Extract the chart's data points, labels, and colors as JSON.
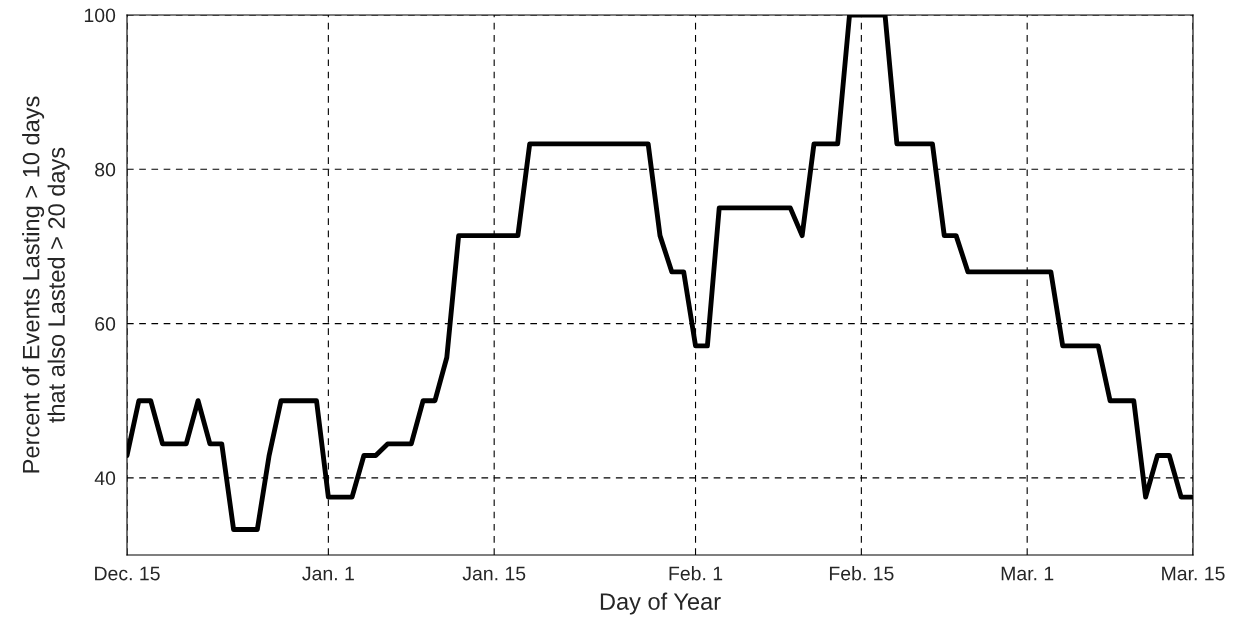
{
  "chart_data": {
    "type": "line",
    "xlabel": "Day of Year",
    "ylabel": "Percent of Events Lasting > 10 days\nthat also Lasted > 20 days",
    "categories": [
      "Dec. 15",
      null,
      null,
      null,
      null,
      null,
      null,
      null,
      null,
      null,
      null,
      null,
      null,
      null,
      null,
      null,
      null,
      "Jan. 1",
      null,
      null,
      null,
      null,
      null,
      null,
      null,
      null,
      null,
      null,
      null,
      null,
      null,
      "Jan. 15",
      null,
      null,
      null,
      null,
      null,
      null,
      null,
      null,
      null,
      null,
      null,
      null,
      null,
      null,
      null,
      null,
      "Feb. 1",
      null,
      null,
      null,
      null,
      null,
      null,
      null,
      null,
      null,
      null,
      null,
      null,
      null,
      "Feb. 15",
      null,
      null,
      null,
      null,
      null,
      null,
      null,
      null,
      null,
      null,
      null,
      null,
      null,
      "Mar. 1",
      null,
      null,
      null,
      null,
      null,
      null,
      null,
      null,
      null,
      null,
      null,
      null,
      null,
      "Mar. 15"
    ],
    "series": [
      {
        "color": "#000000",
        "values": [
          42.9,
          50,
          50,
          44.4,
          44.4,
          44.4,
          50,
          44.4,
          44.4,
          33.3,
          33.3,
          33.3,
          42.9,
          50,
          50,
          50,
          50,
          37.5,
          37.5,
          37.5,
          42.9,
          42.9,
          44.4,
          44.4,
          44.4,
          50,
          50,
          55.6,
          71.4,
          71.4,
          71.4,
          71.4,
          71.4,
          71.4,
          83.3,
          83.3,
          83.3,
          83.3,
          83.3,
          83.3,
          83.3,
          83.3,
          83.3,
          83.3,
          83.3,
          71.4,
          66.7,
          66.7,
          57.1,
          57.1,
          75,
          75,
          75,
          75,
          75,
          75,
          75,
          71.4,
          83.3,
          83.3,
          83.3,
          100,
          100,
          100,
          100,
          83.3,
          83.3,
          83.3,
          83.3,
          71.4,
          71.4,
          66.7,
          66.7,
          66.7,
          66.7,
          66.7,
          66.7,
          66.7,
          66.7,
          57.1,
          57.1,
          57.1,
          57.1,
          50,
          50,
          50,
          37.5,
          42.9,
          42.9,
          37.5,
          37.5
        ]
      }
    ],
    "ylim": [
      30,
      100
    ],
    "yticks": [
      40,
      60,
      80,
      100
    ],
    "grid": true,
    "line_style": "solid",
    "marker": "none"
  }
}
